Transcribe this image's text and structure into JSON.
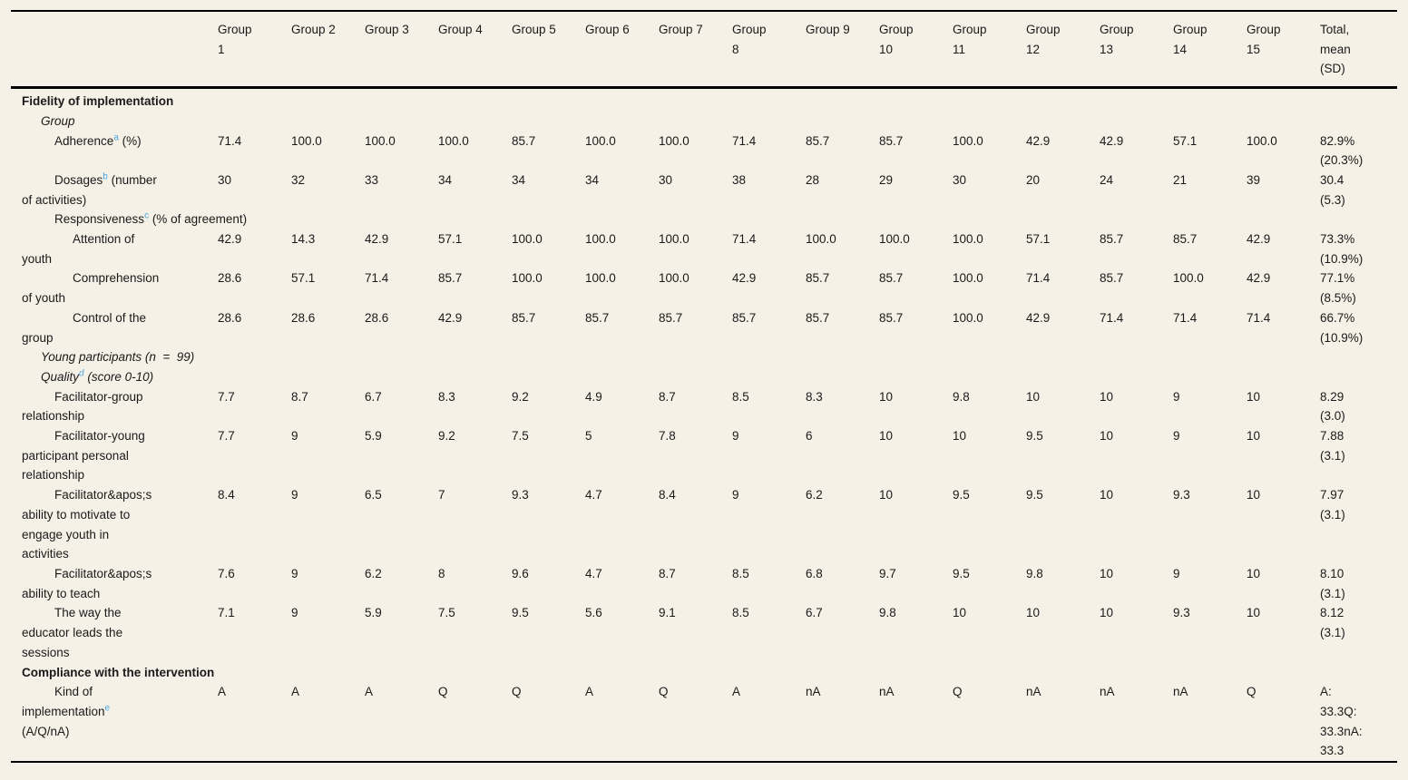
{
  "colors": {
    "background": "#f6f1e7",
    "text": "#1a1a1a",
    "footnote_link": "#4ba5dd",
    "rule": "#000000"
  },
  "table": {
    "header": {
      "row_label_column": "",
      "group_columns": [
        "Group 1",
        "Group 2",
        "Group 3",
        "Group 4",
        "Group 5",
        "Group 6",
        "Group 7",
        "Group 8",
        "Group 9",
        "Group 10",
        "Group 11",
        "Group 12",
        "Group 13",
        "Group 14",
        "Group 15"
      ],
      "total_column": "Total, mean (SD)"
    },
    "rows": [
      {
        "kind": "section",
        "indent": 0,
        "pre": "Fidelity of implementation",
        "sup": "",
        "post": "",
        "values": [],
        "total": ""
      },
      {
        "kind": "subheader",
        "indent": 1,
        "pre": "Group",
        "sup": "",
        "post": "",
        "values": [],
        "total": ""
      },
      {
        "kind": "data",
        "indent": 2,
        "pre": "Adherence",
        "sup": "a",
        "post": " (%)",
        "values": [
          "71.4",
          "100.0",
          "100.0",
          "100.0",
          "85.7",
          "100.0",
          "100.0",
          "71.4",
          "85.7",
          "85.7",
          "100.0",
          "42.9",
          "42.9",
          "57.1",
          "100.0"
        ],
        "total": "82.9% (20.3%)"
      },
      {
        "kind": "data",
        "indent": 2,
        "pre": "Dosages",
        "sup": "b",
        "post": " (number of activities)",
        "values": [
          "30",
          "32",
          "33",
          "34",
          "34",
          "34",
          "30",
          "38",
          "28",
          "29",
          "30",
          "20",
          "24",
          "21",
          "39"
        ],
        "total": "30.4 (5.3)"
      },
      {
        "kind": "data",
        "indent": 2,
        "pre": "Responsiveness",
        "sup": "c",
        "post": " (% of agreement)",
        "values": [],
        "total": ""
      },
      {
        "kind": "data",
        "indent": 3,
        "pre": "Attention of youth",
        "sup": "",
        "post": "",
        "values": [
          "42.9",
          "14.3",
          "42.9",
          "57.1",
          "100.0",
          "100.0",
          "100.0",
          "71.4",
          "100.0",
          "100.0",
          "100.0",
          "57.1",
          "85.7",
          "85.7",
          "42.9"
        ],
        "total": "73.3% (10.9%)"
      },
      {
        "kind": "data",
        "indent": 3,
        "pre": "Comprehension of youth",
        "sup": "",
        "post": "",
        "values": [
          "28.6",
          "57.1",
          "71.4",
          "85.7",
          "100.0",
          "100.0",
          "100.0",
          "42.9",
          "85.7",
          "85.7",
          "100.0",
          "71.4",
          "85.7",
          "100.0",
          "42.9"
        ],
        "total": "77.1% (8.5%)"
      },
      {
        "kind": "data",
        "indent": 3,
        "pre": "Control of the group",
        "sup": "",
        "post": "",
        "values": [
          "28.6",
          "28.6",
          "28.6",
          "42.9",
          "85.7",
          "85.7",
          "85.7",
          "85.7",
          "85.7",
          "85.7",
          "100.0",
          "42.9",
          "71.4",
          "71.4",
          "71.4"
        ],
        "total": "66.7% (10.9%)"
      },
      {
        "kind": "subheader",
        "indent": 1,
        "pre": "Young participants (n  =  99)",
        "sup": "",
        "post": "",
        "values": [],
        "total": ""
      },
      {
        "kind": "subheader",
        "indent": 1,
        "pre": "Quality",
        "sup": "d",
        "post": " (score 0-10)",
        "values": [],
        "total": ""
      },
      {
        "kind": "data",
        "indent": 2,
        "pre": "Facilitator-group relationship",
        "sup": "",
        "post": "",
        "values": [
          "7.7",
          "8.7",
          "6.7",
          "8.3",
          "9.2",
          "4.9",
          "8.7",
          "8.5",
          "8.3",
          "10",
          "9.8",
          "10",
          "10",
          "9",
          "10"
        ],
        "total": "8.29 (3.0)"
      },
      {
        "kind": "data",
        "indent": 2,
        "pre": "Facilitator-young participant personal relationship",
        "sup": "",
        "post": "",
        "values": [
          "7.7",
          "9",
          "5.9",
          "9.2",
          "7.5",
          "5",
          "7.8",
          "9",
          "6",
          "10",
          "10",
          "9.5",
          "10",
          "9",
          "10"
        ],
        "total": "7.88 (3.1)"
      },
      {
        "kind": "data",
        "indent": 2,
        "pre": "Facilitator&apos;s ability to motivate to engage youth in activities",
        "sup": "",
        "post": "",
        "values": [
          "8.4",
          "9",
          "6.5",
          "7",
          "9.3",
          "4.7",
          "8.4",
          "9",
          "6.2",
          "10",
          "9.5",
          "9.5",
          "10",
          "9.3",
          "10"
        ],
        "total": "7.97 (3.1)"
      },
      {
        "kind": "data",
        "indent": 2,
        "pre": "Facilitator&apos;s ability to teach",
        "sup": "",
        "post": "",
        "values": [
          "7.6",
          "9",
          "6.2",
          "8",
          "9.6",
          "4.7",
          "8.7",
          "8.5",
          "6.8",
          "9.7",
          "9.5",
          "9.8",
          "10",
          "9",
          "10"
        ],
        "total": "8.10 (3.1)"
      },
      {
        "kind": "data",
        "indent": 2,
        "pre": "The way the educator leads the sessions",
        "sup": "",
        "post": "",
        "values": [
          "7.1",
          "9",
          "5.9",
          "7.5",
          "9.5",
          "5.6",
          "9.1",
          "8.5",
          "6.7",
          "9.8",
          "10",
          "10",
          "10",
          "9.3",
          "10"
        ],
        "total": "8.12 (3.1)"
      },
      {
        "kind": "section",
        "indent": 0,
        "pre": "Compliance with the intervention",
        "sup": "",
        "post": "",
        "values": [],
        "total": ""
      },
      {
        "kind": "data",
        "indent": 2,
        "pre": "Kind of implementation",
        "sup": "e",
        "post": " (A/Q/nA)",
        "values": [
          "A",
          "A",
          "A",
          "Q",
          "Q",
          "A",
          "Q",
          "A",
          "nA",
          "nA",
          "Q",
          "nA",
          "nA",
          "nA",
          "Q"
        ],
        "total": "A: 33.3Q: 33.3nA: 33.3"
      }
    ]
  }
}
